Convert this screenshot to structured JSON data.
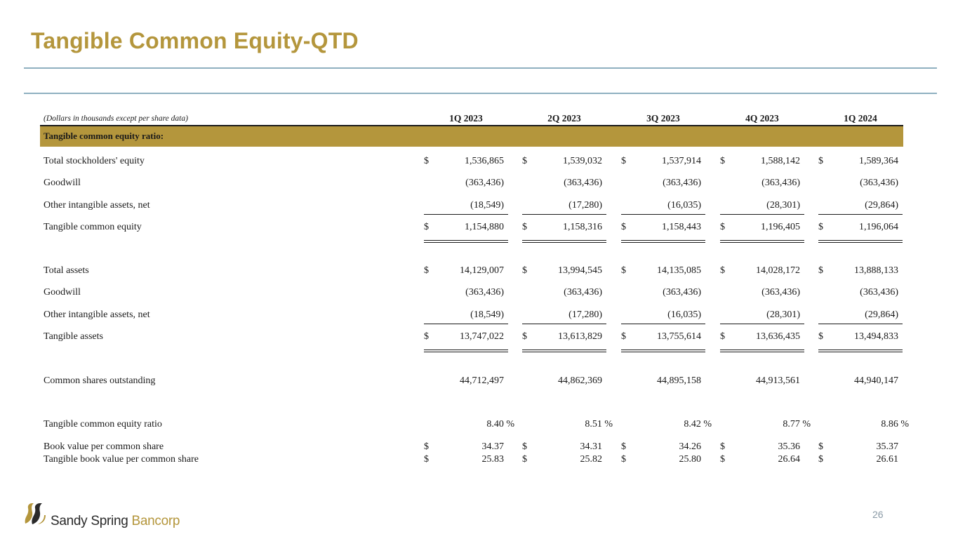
{
  "title": "Tangible Common Equity-QTD",
  "note": "(Dollars in thousands except per share data)",
  "columns": [
    "1Q 2023",
    "2Q 2023",
    "3Q 2023",
    "4Q 2023",
    "1Q 2024"
  ],
  "section_label": "Tangible common equity ratio:",
  "rows": [
    {
      "label": "Total stockholders' equity",
      "dollar": true,
      "values": [
        "1,536,865",
        "1,539,032",
        "1,537,914",
        "1,588,142",
        "1,589,364"
      ]
    },
    {
      "label": "Goodwill",
      "dollar": false,
      "values": [
        "(363,436)",
        "(363,436)",
        "(363,436)",
        "(363,436)",
        "(363,436)"
      ]
    },
    {
      "label": "Other intangible assets, net",
      "dollar": false,
      "values": [
        "(18,549)",
        "(17,280)",
        "(16,035)",
        "(28,301)",
        "(29,864)"
      ]
    },
    {
      "label": "Tangible common equity",
      "dollar": true,
      "values": [
        "1,154,880",
        "1,158,316",
        "1,158,443",
        "1,196,405",
        "1,196,064"
      ]
    },
    {
      "label": "Total assets",
      "dollar": true,
      "values": [
        "14,129,007",
        "13,994,545",
        "14,135,085",
        "14,028,172",
        "13,888,133"
      ]
    },
    {
      "label": "Goodwill",
      "dollar": false,
      "values": [
        "(363,436)",
        "(363,436)",
        "(363,436)",
        "(363,436)",
        "(363,436)"
      ]
    },
    {
      "label": "Other intangible assets, net",
      "dollar": false,
      "values": [
        "(18,549)",
        "(17,280)",
        "(16,035)",
        "(28,301)",
        "(29,864)"
      ]
    },
    {
      "label": "Tangible assets",
      "dollar": true,
      "values": [
        "13,747,022",
        "13,613,829",
        "13,755,614",
        "13,636,435",
        "13,494,833"
      ]
    },
    {
      "label": "Common shares outstanding",
      "dollar": false,
      "values": [
        "44,712,497",
        "44,862,369",
        "44,895,158",
        "44,913,561",
        "44,940,147"
      ]
    },
    {
      "label": "Tangible common equity ratio",
      "dollar": false,
      "values": [
        "8.40 %",
        "8.51 %",
        "8.42 %",
        "8.77 %",
        "8.86 %"
      ]
    },
    {
      "label": "Book value per common share",
      "dollar": true,
      "values": [
        "34.37",
        "34.31",
        "34.26",
        "35.36",
        "35.37"
      ]
    },
    {
      "label": "Tangible book value per common share",
      "dollar": true,
      "values": [
        "25.83",
        "25.82",
        "25.80",
        "26.64",
        "26.61"
      ]
    }
  ],
  "currency_symbol": "$",
  "logo": {
    "name_part1": "Sandy Spring ",
    "name_part2": "Bancorp",
    "brand_color": "#b4963c",
    "icon": "ss-swoosh-logo"
  },
  "page_number": "26",
  "colors": {
    "title": "#b4963c",
    "band": "#b4963c",
    "rules": "#8fb0c0"
  }
}
